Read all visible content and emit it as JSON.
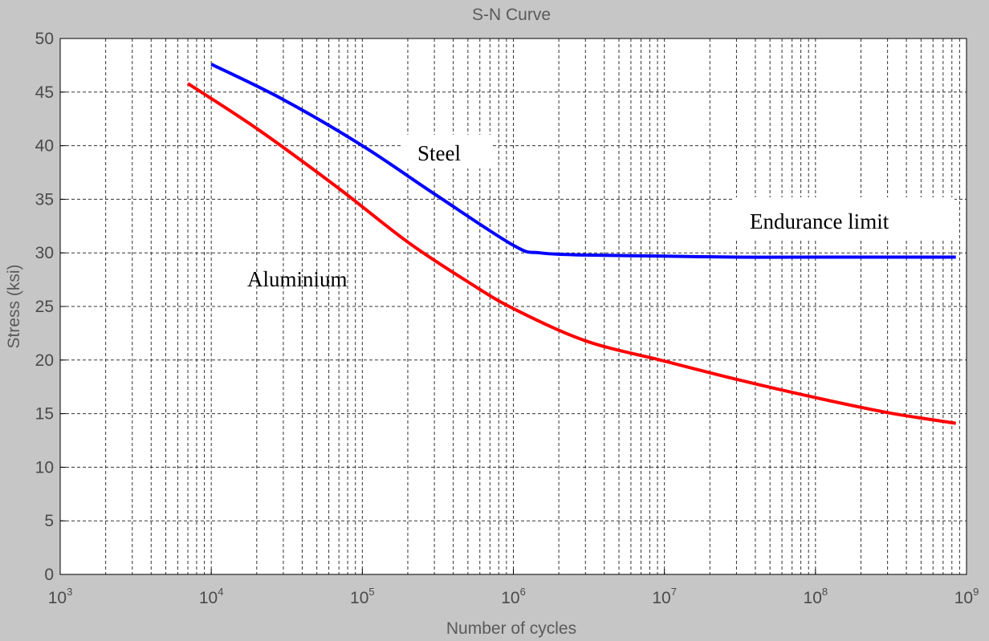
{
  "chart_data": {
    "type": "line",
    "title": "S-N Curve",
    "xlabel": "Number of cycles",
    "ylabel": "Stress (ksi)",
    "xscale": "log",
    "xlim": [
      1000,
      1000000000
    ],
    "ylim": [
      0,
      50
    ],
    "grid": true,
    "yticks": [
      0,
      5,
      10,
      15,
      20,
      25,
      30,
      35,
      40,
      45,
      50
    ],
    "xtick_labels": [
      {
        "value": 1000,
        "base": "10",
        "exp": "3"
      },
      {
        "value": 10000,
        "base": "10",
        "exp": "4"
      },
      {
        "value": 100000,
        "base": "10",
        "exp": "5"
      },
      {
        "value": 1000000,
        "base": "10",
        "exp": "6"
      },
      {
        "value": 10000000,
        "base": "10",
        "exp": "7"
      },
      {
        "value": 100000000,
        "base": "10",
        "exp": "8"
      },
      {
        "value": 1000000000,
        "base": "10",
        "exp": "9"
      }
    ],
    "series": [
      {
        "name": "Steel",
        "color": "#0000ff",
        "x": [
          10000,
          30000,
          100000,
          300000,
          1000000,
          1500000,
          3000000,
          10000000,
          30000000,
          100000000,
          850000000
        ],
        "y": [
          47.6,
          44.3,
          40.0,
          35.5,
          30.7,
          30.0,
          29.8,
          29.7,
          29.6,
          29.6,
          29.6
        ]
      },
      {
        "name": "Aluminium",
        "color": "#ff0000",
        "x": [
          7000,
          20000,
          70000,
          200000,
          500000,
          1000000,
          3000000,
          10000000,
          30000000,
          100000000,
          300000000,
          850000000
        ],
        "y": [
          45.8,
          41.6,
          36.0,
          31.0,
          27.3,
          24.8,
          21.8,
          19.9,
          18.2,
          16.5,
          15.1,
          14.1
        ]
      }
    ],
    "annotations": [
      {
        "text": "Steel",
        "series": "Steel"
      },
      {
        "text": "Aluminium",
        "series": "Aluminium"
      },
      {
        "text": "Endurance limit",
        "series": "Steel"
      }
    ]
  },
  "colors": {
    "figure_bg": "#c6c6c6",
    "plot_bg": "#ffffff",
    "grid": "#333333",
    "axis": "#000000",
    "text": "#4a4a4a"
  }
}
